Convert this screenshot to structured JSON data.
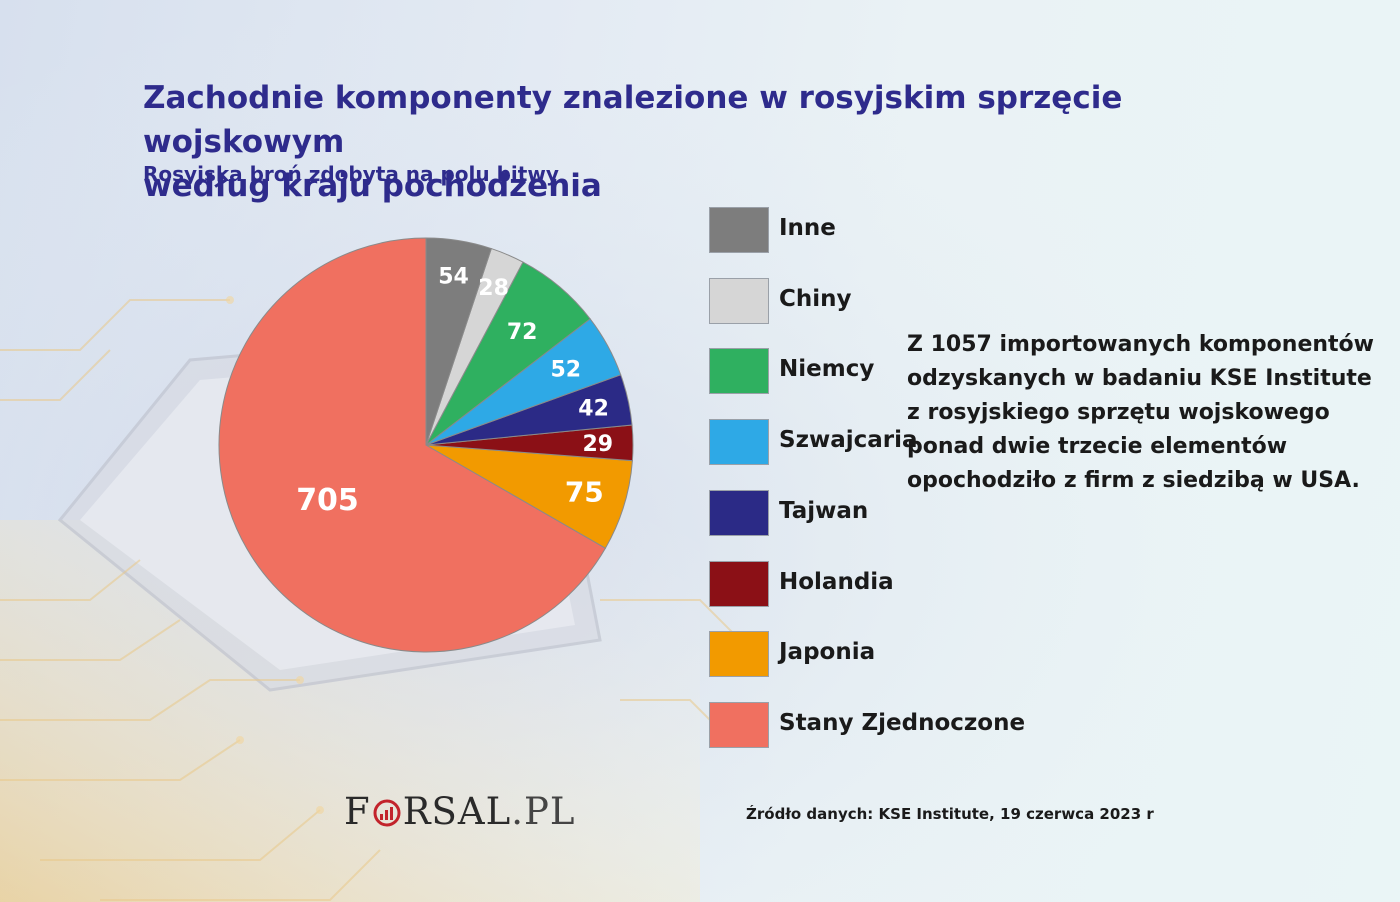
{
  "title_line1": "Zachodnie komponenty znalezione w rosyjskim sprzęcie wojskowym",
  "title_line2": "według kraju pochodzenia",
  "subtitle": "Rosyjska broń zdobyta na polu bitwy",
  "chart_data": {
    "type": "pie",
    "start_angle_deg": 0,
    "direction": "counterclockwise",
    "slices": [
      {
        "label": "Stany Zjednoczone",
        "value": 705,
        "color": "#f07060"
      },
      {
        "label": "Japonia",
        "value": 75,
        "color": "#f29a00"
      },
      {
        "label": "Holandia",
        "value": 29,
        "color": "#8b1016"
      },
      {
        "label": "Tajwan",
        "value": 42,
        "color": "#2b2a86"
      },
      {
        "label": "Szwajcaria",
        "value": 52,
        "color": "#2ea9e6"
      },
      {
        "label": "Niemcy",
        "value": 72,
        "color": "#2fb060"
      },
      {
        "label": "Chiny",
        "value": 28,
        "color": "#d6d6d6"
      },
      {
        "label": "Inne",
        "value": 54,
        "color": "#7d7d7d"
      }
    ],
    "legend_order": [
      "Inne",
      "Chiny",
      "Niemcy",
      "Szwajcaria",
      "Tajwan",
      "Holandia",
      "Japonia",
      "Stany Zjednoczone"
    ],
    "legend_position": "right"
  },
  "note_lines": [
    "Z 1057 importowanych komponentów",
    "odzyskanych w badaniu KSE Institute",
    "z rosyjskiego sprzętu wojskowego",
    "ponad dwie trzecie elementów",
    "opochodziło z firm z siedzibą w USA."
  ],
  "logo": {
    "part1": "F",
    "part2": "RSAL",
    "part3": ".PL"
  },
  "source": "Źródło  danych: KSE Institute, 19 czerwca 2023 r"
}
